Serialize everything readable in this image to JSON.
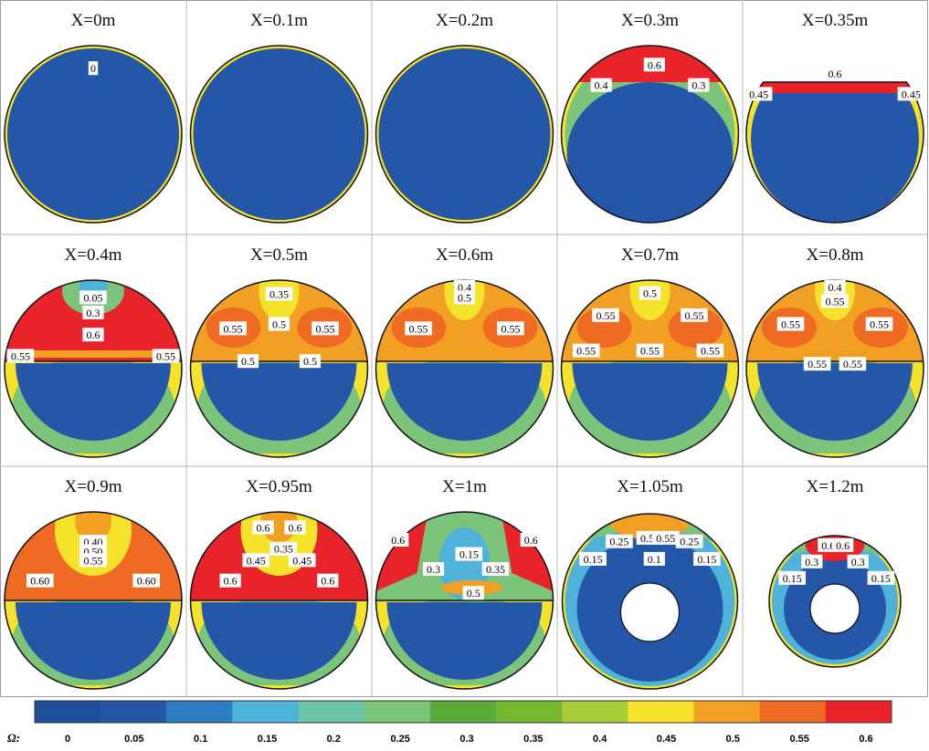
{
  "figure": {
    "panels": [
      {
        "title": "X=0m",
        "type": "full",
        "level": 0.0,
        "labels": [
          {
            "text": "0",
            "x": 0.0,
            "y": -0.74
          }
        ]
      },
      {
        "title": "X=0.1m",
        "type": "full",
        "level": 0.0,
        "labels": []
      },
      {
        "title": "X=0.2m",
        "type": "full",
        "level": 0.0,
        "labels": []
      },
      {
        "title": "X=0.3m",
        "type": "cap",
        "level": 0.62,
        "labels": [
          {
            "text": "0.6",
            "x": 0.05,
            "y": -0.78
          },
          {
            "text": "0.4",
            "x": -0.55,
            "y": -0.55
          },
          {
            "text": "0.3",
            "x": 0.55,
            "y": -0.55
          }
        ]
      },
      {
        "title": "X=0.35m",
        "type": "truncated",
        "level": 0.55,
        "labels": [
          {
            "text": "0.6",
            "x": 0.0,
            "y": -0.68
          },
          {
            "text": "0.45",
            "x": -0.86,
            "y": -0.45
          },
          {
            "text": "0.45",
            "x": 0.86,
            "y": -0.45
          }
        ]
      },
      {
        "title": "X=0.4m",
        "type": "layered",
        "level": 0.1,
        "labels": [
          {
            "text": "0.05",
            "x": 0.0,
            "y": -0.8
          },
          {
            "text": "0.3",
            "x": 0.0,
            "y": -0.63
          },
          {
            "text": "0.6",
            "x": 0.0,
            "y": -0.38
          },
          {
            "text": "0.55",
            "x": -0.82,
            "y": -0.14
          },
          {
            "text": "0.55",
            "x": 0.82,
            "y": -0.14
          }
        ]
      },
      {
        "title": "X=0.5m",
        "type": "layered",
        "level": 0.05,
        "labels": [
          {
            "text": "0.35",
            "x": 0.0,
            "y": -0.84
          },
          {
            "text": "0.55",
            "x": -0.52,
            "y": -0.45
          },
          {
            "text": "0.5",
            "x": 0.0,
            "y": -0.5
          },
          {
            "text": "0.55",
            "x": 0.52,
            "y": -0.45
          },
          {
            "text": "0.5",
            "x": -0.35,
            "y": -0.08
          },
          {
            "text": "0.5",
            "x": 0.35,
            "y": -0.08
          }
        ]
      },
      {
        "title": "X=0.6m",
        "type": "layered",
        "level": 0.05,
        "labels": [
          {
            "text": "0.4",
            "x": 0.0,
            "y": -0.92
          },
          {
            "text": "0.5",
            "x": 0.0,
            "y": -0.8
          },
          {
            "text": "0.55",
            "x": -0.52,
            "y": -0.45
          },
          {
            "text": "0.55",
            "x": 0.52,
            "y": -0.45
          }
        ]
      },
      {
        "title": "X=0.7m",
        "type": "layered",
        "level": 0.05,
        "labels": [
          {
            "text": "0.5",
            "x": 0.0,
            "y": -0.85
          },
          {
            "text": "0.55",
            "x": -0.5,
            "y": -0.6
          },
          {
            "text": "0.55",
            "x": 0.5,
            "y": -0.6
          },
          {
            "text": "0.55",
            "x": -0.72,
            "y": -0.2
          },
          {
            "text": "0.55",
            "x": 0.0,
            "y": -0.2
          },
          {
            "text": "0.55",
            "x": 0.68,
            "y": -0.2
          }
        ]
      },
      {
        "title": "X=0.8m",
        "type": "layered",
        "level": 0.05,
        "labels": [
          {
            "text": "0.4",
            "x": 0.0,
            "y": -0.92
          },
          {
            "text": "0.55",
            "x": 0.0,
            "y": -0.76
          },
          {
            "text": "0.55",
            "x": -0.5,
            "y": -0.5
          },
          {
            "text": "0.55",
            "x": 0.5,
            "y": -0.5
          },
          {
            "text": "0.55",
            "x": -0.2,
            "y": -0.05
          },
          {
            "text": "0.55",
            "x": 0.2,
            "y": -0.05
          }
        ]
      },
      {
        "title": "X=0.9m",
        "type": "layered",
        "level": 0.3,
        "labels": [
          {
            "text": "0.40",
            "x": 0.0,
            "y": -0.66
          },
          {
            "text": "0.50",
            "x": 0.0,
            "y": -0.55
          },
          {
            "text": "0.55",
            "x": 0.0,
            "y": -0.45
          },
          {
            "text": "0.60",
            "x": -0.6,
            "y": -0.22
          },
          {
            "text": "0.60",
            "x": 0.6,
            "y": -0.22
          }
        ]
      },
      {
        "title": "X=0.95m",
        "type": "layered",
        "level": 0.3,
        "labels": [
          {
            "text": "0.6",
            "x": -0.18,
            "y": -0.82
          },
          {
            "text": "0.6",
            "x": 0.18,
            "y": -0.82
          },
          {
            "text": "0.35",
            "x": 0.05,
            "y": -0.58
          },
          {
            "text": "0.45",
            "x": -0.26,
            "y": -0.45
          },
          {
            "text": "0.45",
            "x": 0.26,
            "y": -0.45
          },
          {
            "text": "0.6",
            "x": -0.55,
            "y": -0.22
          },
          {
            "text": "0.6",
            "x": 0.55,
            "y": -0.22
          }
        ]
      },
      {
        "title": "X=1m",
        "type": "layered",
        "level": 0.12,
        "labels": [
          {
            "text": "0.6",
            "x": -0.75,
            "y": -0.68
          },
          {
            "text": "0.6",
            "x": 0.75,
            "y": -0.68
          },
          {
            "text": "0.15",
            "x": 0.05,
            "y": -0.52
          },
          {
            "text": "0.3",
            "x": -0.35,
            "y": -0.35
          },
          {
            "text": "0.35",
            "x": 0.35,
            "y": -0.35
          },
          {
            "text": "0.5",
            "x": 0.1,
            "y": -0.08
          }
        ]
      },
      {
        "title": "X=1.05m",
        "type": "annulus",
        "level": 0.0,
        "labels": [
          {
            "text": "0.25",
            "x": -0.35,
            "y": -0.68
          },
          {
            "text": "0.55",
            "x": 0.0,
            "y": -0.72
          },
          {
            "text": "0.55",
            "x": 0.18,
            "y": -0.72
          },
          {
            "text": "0.25",
            "x": 0.45,
            "y": -0.68
          },
          {
            "text": "0.15",
            "x": -0.65,
            "y": -0.48
          },
          {
            "text": "0.1",
            "x": 0.05,
            "y": -0.48
          },
          {
            "text": "0.15",
            "x": 0.65,
            "y": -0.48
          }
        ]
      },
      {
        "title": "X=1.2m",
        "type": "annulus-small",
        "level": 0.0,
        "labels": [
          {
            "text": "0.6",
            "x": -0.1,
            "y": -0.85
          },
          {
            "text": "0.6",
            "x": 0.12,
            "y": -0.85
          },
          {
            "text": "0.3",
            "x": -0.35,
            "y": -0.6
          },
          {
            "text": "0.3",
            "x": 0.35,
            "y": -0.6
          },
          {
            "text": "0.15",
            "x": -0.65,
            "y": -0.35
          },
          {
            "text": "0.15",
            "x": 0.7,
            "y": -0.35
          }
        ]
      }
    ],
    "colorbar": {
      "symbol": "Ω:",
      "ticks": [
        "0",
        "0.05",
        "0.1",
        "0.15",
        "0.2",
        "0.25",
        "0.3",
        "0.35",
        "0.4",
        "0.45",
        "0.5",
        "0.55",
        "0.6"
      ],
      "colors": [
        "#1f4e9a",
        "#2457a8",
        "#2e7cc4",
        "#4fb3d9",
        "#6cc4a8",
        "#7bc47a",
        "#5aaa3a",
        "#77b833",
        "#a7cd3b",
        "#f4e32a",
        "#f2a024",
        "#ef6a22",
        "#e8232a"
      ]
    },
    "palette": {
      "blue": "#2457a8",
      "yellow": "#f4e32a",
      "orange": "#f2a024",
      "darkorange": "#ef6a22",
      "red": "#e8232a",
      "green": "#7bc47a",
      "lightblue": "#4fb3d9"
    }
  }
}
